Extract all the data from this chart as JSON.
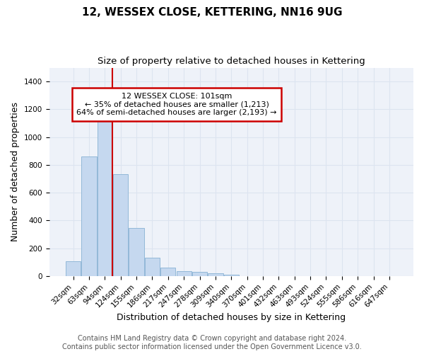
{
  "title": "12, WESSEX CLOSE, KETTERING, NN16 9UG",
  "subtitle": "Size of property relative to detached houses in Kettering",
  "xlabel": "Distribution of detached houses by size in Kettering",
  "ylabel": "Number of detached properties",
  "bar_values": [
    107,
    863,
    1148,
    735,
    347,
    130,
    60,
    35,
    28,
    18,
    10,
    0,
    0,
    0,
    0,
    0,
    0,
    0,
    0,
    0,
    0
  ],
  "bar_labels": [
    "32sqm",
    "63sqm",
    "94sqm",
    "124sqm",
    "155sqm",
    "186sqm",
    "217sqm",
    "247sqm",
    "278sqm",
    "309sqm",
    "340sqm",
    "370sqm",
    "401sqm",
    "432sqm",
    "463sqm",
    "493sqm",
    "524sqm",
    "555sqm",
    "586sqm",
    "616sqm",
    "647sqm"
  ],
  "bar_color": "#c5d8ef",
  "bar_edge_color": "#92b8d8",
  "grid_color": "#dce4f0",
  "annotation_line1": "12 WESSEX CLOSE: 101sqm",
  "annotation_line2": "← 35% of detached houses are smaller (1,213)",
  "annotation_line3": "64% of semi-detached houses are larger (2,193) →",
  "annotation_box_color": "#ffffff",
  "annotation_border_color": "#cc0000",
  "vline_bin_index": 2,
  "vline_color": "#cc0000",
  "ylim": [
    0,
    1500
  ],
  "yticks": [
    0,
    200,
    400,
    600,
    800,
    1000,
    1200,
    1400
  ],
  "bg_color": "#eef2f9",
  "footnote": "Contains HM Land Registry data © Crown copyright and database right 2024.\nContains public sector information licensed under the Open Government Licence v3.0.",
  "title_fontsize": 11,
  "subtitle_fontsize": 9.5,
  "xlabel_fontsize": 9,
  "ylabel_fontsize": 9,
  "tick_fontsize": 7.5,
  "annotation_fontsize": 8,
  "footnote_fontsize": 7
}
